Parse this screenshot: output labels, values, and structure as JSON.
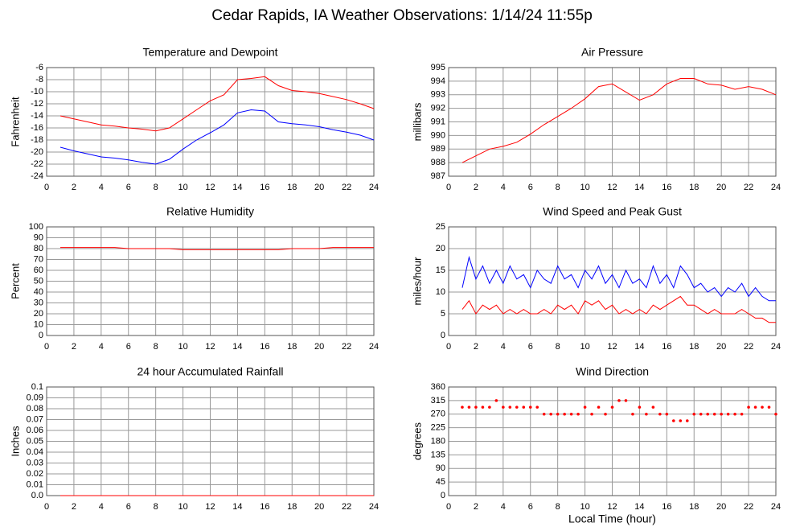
{
  "title": "Cedar Rapids, IA Weather Observations: 1/14/24 11:55p",
  "chart_data": [
    {
      "type": "line",
      "title": "Temperature and Dewpoint",
      "ylabel": "Fahrenheit",
      "x": [
        1,
        2,
        3,
        4,
        5,
        6,
        7,
        8,
        9,
        10,
        11,
        12,
        13,
        14,
        15,
        16,
        17,
        18,
        19,
        20,
        21,
        22,
        23,
        24
      ],
      "series": [
        {
          "name": "Temperature",
          "color": "#ff0000",
          "values": [
            -14,
            -14.5,
            -15,
            -15.5,
            -15.7,
            -16,
            -16.2,
            -16.5,
            -16,
            -14.5,
            -13,
            -11.5,
            -10.5,
            -8,
            -7.8,
            -7.5,
            -9,
            -9.8,
            -10,
            -10.3,
            -10.8,
            -11.3,
            -12,
            -12.8
          ]
        },
        {
          "name": "Dewpoint",
          "color": "#0000ff",
          "values": [
            -19.2,
            -19.8,
            -20.3,
            -20.8,
            -21,
            -21.3,
            -21.7,
            -22,
            -21.2,
            -19.5,
            -18,
            -16.8,
            -15.5,
            -13.5,
            -13,
            -13.2,
            -15,
            -15.3,
            -15.5,
            -15.8,
            -16.3,
            -16.7,
            -17.2,
            -18
          ]
        }
      ],
      "xlim": [
        0,
        24
      ],
      "xticks": [
        0,
        2,
        4,
        6,
        8,
        10,
        12,
        14,
        16,
        18,
        20,
        22,
        24
      ],
      "ylim": [
        -24,
        -6
      ],
      "yticks": [
        -24,
        -22,
        -20,
        -18,
        -16,
        -14,
        -12,
        -10,
        -8,
        -6
      ],
      "grid": true
    },
    {
      "type": "line",
      "title": "Air Pressure",
      "ylabel": "millibars",
      "x": [
        1,
        2,
        3,
        4,
        5,
        6,
        7,
        8,
        9,
        10,
        11,
        12,
        13,
        14,
        15,
        16,
        17,
        18,
        19,
        20,
        21,
        22,
        23,
        24
      ],
      "series": [
        {
          "name": "Pressure",
          "color": "#ff0000",
          "values": [
            988,
            988.5,
            989,
            989.2,
            989.5,
            990.1,
            990.8,
            991.4,
            992,
            992.7,
            993.6,
            993.8,
            993.2,
            992.6,
            993,
            993.8,
            994.2,
            994.2,
            993.8,
            993.7,
            993.4,
            993.6,
            993.4,
            993
          ]
        }
      ],
      "xlim": [
        0,
        24
      ],
      "xticks": [
        0,
        2,
        4,
        6,
        8,
        10,
        12,
        14,
        16,
        18,
        20,
        22,
        24
      ],
      "ylim": [
        987,
        995
      ],
      "yticks": [
        987,
        988,
        989,
        990,
        991,
        992,
        993,
        994,
        995
      ],
      "grid": true
    },
    {
      "type": "line",
      "title": "Relative Humidity",
      "ylabel": "Percent",
      "x": [
        1,
        2,
        3,
        4,
        5,
        6,
        7,
        8,
        9,
        10,
        11,
        12,
        13,
        14,
        15,
        16,
        17,
        18,
        19,
        20,
        21,
        22,
        23,
        24
      ],
      "series": [
        {
          "name": "Relative Humidity",
          "color": "#ff0000",
          "values": [
            81,
            81,
            81,
            81,
            81,
            80,
            80,
            80,
            80,
            79,
            79,
            79,
            79,
            79,
            79,
            79,
            79,
            80,
            80,
            80,
            81,
            81,
            81,
            81
          ]
        }
      ],
      "xlim": [
        0,
        24
      ],
      "xticks": [
        0,
        2,
        4,
        6,
        8,
        10,
        12,
        14,
        16,
        18,
        20,
        22,
        24
      ],
      "ylim": [
        0,
        100
      ],
      "yticks": [
        0,
        10,
        20,
        30,
        40,
        50,
        60,
        70,
        80,
        90,
        100
      ],
      "grid": true
    },
    {
      "type": "line",
      "title": "Wind Speed and Peak Gust",
      "ylabel": "miles/hour",
      "x": [
        1,
        1.5,
        2,
        2.5,
        3,
        3.5,
        4,
        4.5,
        5,
        5.5,
        6,
        6.5,
        7,
        7.5,
        8,
        8.5,
        9,
        9.5,
        10,
        10.5,
        11,
        11.5,
        12,
        12.5,
        13,
        13.5,
        14,
        14.5,
        15,
        15.5,
        16,
        16.5,
        17,
        17.5,
        18,
        18.5,
        19,
        19.5,
        20,
        20.5,
        21,
        21.5,
        22,
        22.5,
        23,
        23.5,
        24
      ],
      "series": [
        {
          "name": "Peak Gust",
          "color": "#0000ff",
          "values": [
            11,
            18,
            13,
            16,
            12,
            15,
            12,
            16,
            13,
            14,
            11,
            15,
            13,
            12,
            16,
            13,
            14,
            11,
            15,
            13,
            16,
            12,
            14,
            11,
            15,
            12,
            13,
            11,
            16,
            12,
            14,
            11,
            16,
            14,
            11,
            12,
            10,
            11,
            9,
            11,
            10,
            12,
            9,
            11,
            9,
            8,
            8
          ]
        },
        {
          "name": "Wind Speed",
          "color": "#ff0000",
          "values": [
            6,
            8,
            5,
            7,
            6,
            7,
            5,
            6,
            5,
            6,
            5,
            5,
            6,
            5,
            7,
            6,
            7,
            5,
            8,
            7,
            8,
            6,
            7,
            5,
            6,
            5,
            6,
            5,
            7,
            6,
            7,
            8,
            9,
            7,
            7,
            6,
            5,
            6,
            5,
            5,
            5,
            6,
            5,
            4,
            4,
            3,
            3
          ]
        }
      ],
      "xlim": [
        0,
        24
      ],
      "xticks": [
        0,
        2,
        4,
        6,
        8,
        10,
        12,
        14,
        16,
        18,
        20,
        22,
        24
      ],
      "ylim": [
        0,
        25
      ],
      "yticks": [
        0,
        5,
        10,
        15,
        20,
        25
      ],
      "grid": true
    },
    {
      "type": "line",
      "title": "24 hour Accumulated Rainfall",
      "ylabel": "Inches",
      "x": [
        1,
        24
      ],
      "series": [
        {
          "name": "Rainfall",
          "color": "#ff0000",
          "values": [
            0,
            0
          ]
        }
      ],
      "xlim": [
        0,
        24
      ],
      "xticks": [
        0,
        2,
        4,
        6,
        8,
        10,
        12,
        14,
        16,
        18,
        20,
        22,
        24
      ],
      "ylim": [
        0,
        0.1
      ],
      "yticks": [
        {
          "value": 0,
          "label": "0.0"
        },
        0.01,
        0.02,
        0.03,
        0.04,
        0.05,
        0.06,
        0.07,
        0.08,
        0.09,
        0.1
      ],
      "grid": true
    },
    {
      "type": "scatter",
      "title": "Wind Direction",
      "ylabel": "degrees",
      "xlabel": "Local Time (hour)",
      "x": [
        1,
        1.5,
        2,
        2.5,
        3,
        3.5,
        4,
        4.5,
        5,
        5.5,
        6,
        6.5,
        7,
        7.5,
        8,
        8.5,
        9,
        9.5,
        10,
        10.5,
        11,
        11.5,
        12,
        12.5,
        13,
        13.5,
        14,
        14.5,
        15,
        15.5,
        16,
        16.5,
        17,
        17.5,
        18,
        18.5,
        19,
        19.5,
        20,
        20.5,
        21,
        21.5,
        22,
        22.5,
        23,
        23.5,
        24
      ],
      "series": [
        {
          "name": "Wind Direction",
          "color": "#ff0000",
          "values": [
            293,
            293,
            293,
            293,
            293,
            315,
            293,
            293,
            293,
            293,
            293,
            293,
            270,
            270,
            270,
            270,
            270,
            270,
            293,
            270,
            293,
            270,
            293,
            315,
            315,
            270,
            293,
            270,
            293,
            270,
            270,
            248,
            248,
            248,
            270,
            270,
            270,
            270,
            270,
            270,
            270,
            270,
            293,
            293,
            293,
            293,
            270
          ]
        }
      ],
      "xlim": [
        0,
        24
      ],
      "xticks": [
        0,
        2,
        4,
        6,
        8,
        10,
        12,
        14,
        16,
        18,
        20,
        22,
        24
      ],
      "ylim": [
        0,
        360
      ],
      "yticks": [
        0,
        45,
        90,
        135,
        180,
        225,
        270,
        315,
        360
      ],
      "grid": true
    }
  ]
}
